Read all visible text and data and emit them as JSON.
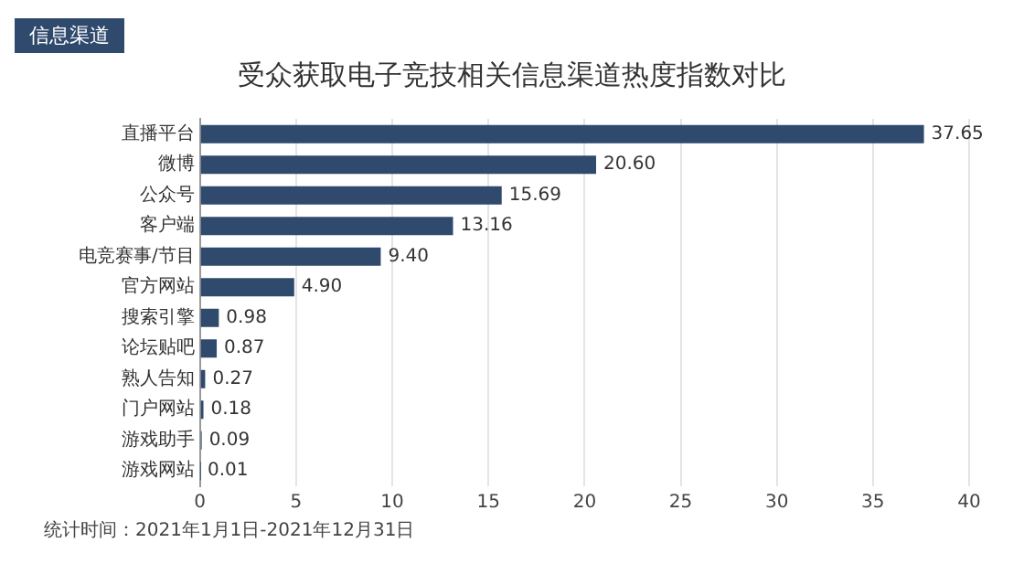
{
  "chart_data": {
    "type": "bar",
    "orientation": "horizontal",
    "title": "受众获取电子竞技相关信息渠道热度指数对比",
    "categories": [
      "直播平台",
      "微博",
      "公众号",
      "客户端",
      "电竞赛事/节目",
      "官方网站",
      "搜索引擎",
      "论坛贴吧",
      "熟人告知",
      "门户网站",
      "游戏助手",
      "游戏网站"
    ],
    "values": [
      37.65,
      20.6,
      15.69,
      13.16,
      9.4,
      4.9,
      0.98,
      0.87,
      0.27,
      0.18,
      0.09,
      0.01
    ],
    "value_labels": [
      "37.65",
      "20.60",
      "15.69",
      "13.16",
      "9.40",
      "4.90",
      "0.98",
      "0.87",
      "0.27",
      "0.18",
      "0.09",
      "0.01"
    ],
    "color": "#2f4a6d",
    "xlim": [
      0,
      40
    ],
    "xticks": [
      0,
      5,
      10,
      15,
      20,
      25,
      30,
      35,
      40
    ],
    "grid": "x",
    "legend": false,
    "annotations": [
      "信息渠道",
      "统计时间：2021年1月1日-2021年12月31日"
    ]
  }
}
